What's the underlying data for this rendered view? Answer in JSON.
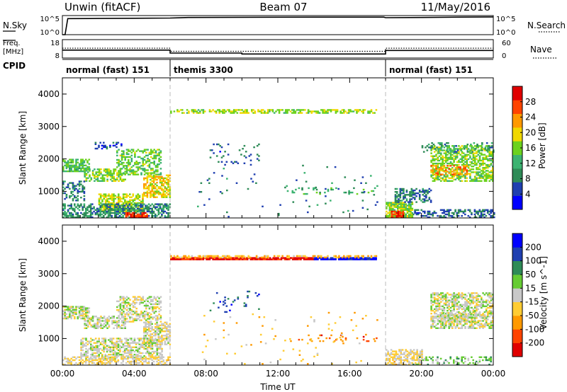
{
  "header": {
    "station": "Unwin (fitACF)",
    "beam": "Beam 07",
    "date": "11/May/2016"
  },
  "strip_labels": {
    "nsky": "N.Sky",
    "nsearch": "N.Search",
    "freq_line1": "Freq.",
    "freq_line2": "[MHz]",
    "nave": "Nave",
    "cpid": "CPID",
    "count_hi": "10^5",
    "count_lo": "10^0",
    "freq_hi": "18",
    "freq_lo": "8",
    "nave_hi": "60",
    "nave_lo": "0"
  },
  "cpid_segments": [
    {
      "label": "normal (fast) 151",
      "start": 0,
      "end": 6
    },
    {
      "label": "themis 3300",
      "start": 6,
      "end": 18
    },
    {
      "label": "normal (fast) 151",
      "start": 18,
      "end": 24
    }
  ],
  "chart_data": [
    {
      "type": "line",
      "panel": "N.Sky / N.Search",
      "series": [
        {
          "name": "N.Sky",
          "style": "solid",
          "x": [
            0,
            0.15,
            0.3,
            2,
            4,
            6,
            7,
            10,
            14,
            17.9,
            18,
            20,
            22,
            24
          ],
          "y": [
            0.0,
            0.0,
            4.2,
            4.25,
            4.3,
            4.35,
            4.5,
            4.55,
            4.6,
            4.6,
            4.45,
            4.5,
            4.6,
            4.65
          ]
        }
      ],
      "ylim": [
        0,
        5
      ]
    },
    {
      "type": "line",
      "panel": "Freq. / Nave",
      "series": [
        {
          "name": "Freq.",
          "style": "solid",
          "x": [
            0,
            6,
            6,
            10,
            10,
            18,
            18,
            24
          ],
          "y": [
            12.3,
            12.3,
            10.7,
            10.7,
            10.2,
            10.2,
            12.1,
            12.1
          ]
        },
        {
          "name": "Nave",
          "style": "dotted",
          "x": [
            0,
            6,
            6,
            18,
            18,
            24
          ],
          "y": [
            32,
            32,
            22,
            22,
            32,
            32
          ]
        }
      ],
      "ylim": [
        8,
        18
      ]
    },
    {
      "type": "heatmap",
      "panel": "Power",
      "xlabel": "",
      "ylabel": "Slant Range [km]",
      "xlim": [
        0,
        24
      ],
      "ylim": [
        180,
        4500
      ],
      "yticks": [
        1000,
        2000,
        3000,
        4000
      ],
      "colorbar": {
        "label": "Power [dB]",
        "range": [
          0,
          32
        ],
        "ticks": [
          4,
          8,
          12,
          16,
          20,
          24,
          28
        ]
      },
      "regions": [
        {
          "t0": 0,
          "t1": 1.5,
          "r0": 1600,
          "r1": 2000,
          "level": 14,
          "density": 0.7
        },
        {
          "t0": 1.2,
          "t1": 3.5,
          "r0": 1300,
          "r1": 1700,
          "level": 16,
          "density": 0.55
        },
        {
          "t0": 3.0,
          "t1": 5.5,
          "r0": 1500,
          "r1": 2300,
          "level": 15,
          "density": 0.45
        },
        {
          "t0": 4.5,
          "t1": 6.0,
          "r0": 800,
          "r1": 1500,
          "level": 20,
          "density": 0.65
        },
        {
          "t0": 2.0,
          "t1": 4.5,
          "r0": 350,
          "r1": 900,
          "level": 18,
          "density": 0.65
        },
        {
          "t0": 0,
          "t1": 6.0,
          "r0": 180,
          "r1": 600,
          "level": 9,
          "density": 0.6
        },
        {
          "t0": 3.5,
          "t1": 4.7,
          "r0": 180,
          "r1": 320,
          "level": 28,
          "density": 0.8
        },
        {
          "t0": 0,
          "t1": 1.2,
          "r0": 700,
          "r1": 1300,
          "level": 8,
          "density": 0.35
        },
        {
          "t0": 1.8,
          "t1": 3.3,
          "r0": 2300,
          "r1": 2500,
          "level": 6,
          "density": 0.25
        },
        {
          "t0": 6.0,
          "t1": 17.5,
          "r0": 3400,
          "r1": 3530,
          "level": 17,
          "density": 0.55
        },
        {
          "t0": 8.2,
          "t1": 11,
          "r0": 1800,
          "r1": 2450,
          "level": 7,
          "density": 0.07
        },
        {
          "t0": 12.5,
          "t1": 17.5,
          "r0": 900,
          "r1": 1100,
          "level": 12,
          "density": 0.15
        },
        {
          "t0": 7.5,
          "t1": 17.5,
          "r0": 200,
          "r1": 1800,
          "level": 8,
          "density": 0.015
        },
        {
          "t0": 18.0,
          "t1": 19.5,
          "r0": 180,
          "r1": 650,
          "level": 16,
          "density": 0.8
        },
        {
          "t0": 18.3,
          "t1": 19.0,
          "r0": 180,
          "r1": 400,
          "level": 28,
          "density": 0.8
        },
        {
          "t0": 18.5,
          "t1": 20.5,
          "r0": 650,
          "r1": 1100,
          "level": 8,
          "density": 0.45
        },
        {
          "t0": 19.5,
          "t1": 24,
          "r0": 180,
          "r1": 450,
          "level": 7,
          "density": 0.45
        },
        {
          "t0": 20.5,
          "t1": 24,
          "r0": 1300,
          "r1": 2400,
          "level": 16,
          "density": 0.55
        },
        {
          "t0": 20.5,
          "t1": 22.5,
          "r0": 1500,
          "r1": 1800,
          "level": 24,
          "density": 0.5
        },
        {
          "t0": 20.0,
          "t1": 24,
          "r0": 2200,
          "r1": 2500,
          "level": 10,
          "density": 0.25
        }
      ]
    },
    {
      "type": "heatmap",
      "panel": "Velocity",
      "xlabel": "Time UT",
      "ylabel": "Slant Range [km]",
      "xlim": [
        0,
        24
      ],
      "ylim": [
        180,
        4500
      ],
      "xticks": [
        "00:00",
        "04:00",
        "08:00",
        "12:00",
        "16:00",
        "20:00",
        "00:00"
      ],
      "yticks": [
        1000,
        2000,
        3000,
        4000
      ],
      "colorbar": {
        "label": "Velocity [m s^-1]",
        "range": [
          -250,
          250
        ],
        "ticks": [
          200,
          100,
          50,
          15,
          -15,
          -50,
          -100,
          -200
        ]
      },
      "regions": [
        {
          "t0": 0,
          "t1": 1.5,
          "r0": 1600,
          "r1": 2000,
          "level": 0,
          "density": 0.7
        },
        {
          "t0": 1.2,
          "t1": 3.5,
          "r0": 1300,
          "r1": 1700,
          "level": 5,
          "density": 0.55
        },
        {
          "t0": 3.0,
          "t1": 5.5,
          "r0": 1500,
          "r1": 2300,
          "level": -5,
          "density": 0.45
        },
        {
          "t0": 4.5,
          "t1": 6.0,
          "r0": 800,
          "r1": 1500,
          "level": -10,
          "density": 0.6
        },
        {
          "t0": 1.0,
          "t1": 5.5,
          "r0": 350,
          "r1": 1000,
          "level": 0,
          "density": 0.55
        },
        {
          "t0": 0,
          "t1": 6.0,
          "r0": 180,
          "r1": 450,
          "level": -30,
          "density": 0.45
        },
        {
          "t0": 6.0,
          "t1": 9.0,
          "r0": 3420,
          "r1": 3470,
          "level": -220,
          "density": 0.9
        },
        {
          "t0": 9.0,
          "t1": 14.0,
          "r0": 3420,
          "r1": 3470,
          "level": -230,
          "density": 0.9
        },
        {
          "t0": 14.0,
          "t1": 17.5,
          "r0": 3420,
          "r1": 3470,
          "level": 220,
          "density": 0.9
        },
        {
          "t0": 6.0,
          "t1": 17.5,
          "r0": 3480,
          "r1": 3540,
          "level": -70,
          "density": 0.4
        },
        {
          "t0": 8.2,
          "t1": 11,
          "r0": 1800,
          "r1": 2450,
          "level": 150,
          "density": 0.07
        },
        {
          "t0": 12.5,
          "t1": 17.5,
          "r0": 900,
          "r1": 1100,
          "level": -150,
          "density": 0.15
        },
        {
          "t0": 7.5,
          "t1": 17.5,
          "r0": 200,
          "r1": 1800,
          "level": -60,
          "density": 0.015
        },
        {
          "t0": 18.0,
          "t1": 20.0,
          "r0": 180,
          "r1": 650,
          "level": -30,
          "density": 0.55
        },
        {
          "t0": 19.5,
          "t1": 24,
          "r0": 180,
          "r1": 450,
          "level": 60,
          "density": 0.3
        },
        {
          "t0": 20.5,
          "t1": 24,
          "r0": 1300,
          "r1": 2400,
          "level": 0,
          "density": 0.6
        },
        {
          "t0": 21.0,
          "t1": 23.0,
          "r0": 1500,
          "r1": 1800,
          "level": 5,
          "density": 0.5
        }
      ]
    }
  ],
  "colors": {
    "power_scale": [
      "#0000ff",
      "#1f3fb0",
      "#2e8b57",
      "#3cb371",
      "#6cd21e",
      "#f0d800",
      "#ff9900",
      "#ff4400",
      "#e00000"
    ],
    "velocity_scale": [
      "#e00000",
      "#ff4400",
      "#ff9900",
      "#ffcc33",
      "#c8c8c8",
      "#66cc33",
      "#2e8b57",
      "#1f3fb0",
      "#0000ff"
    ]
  }
}
